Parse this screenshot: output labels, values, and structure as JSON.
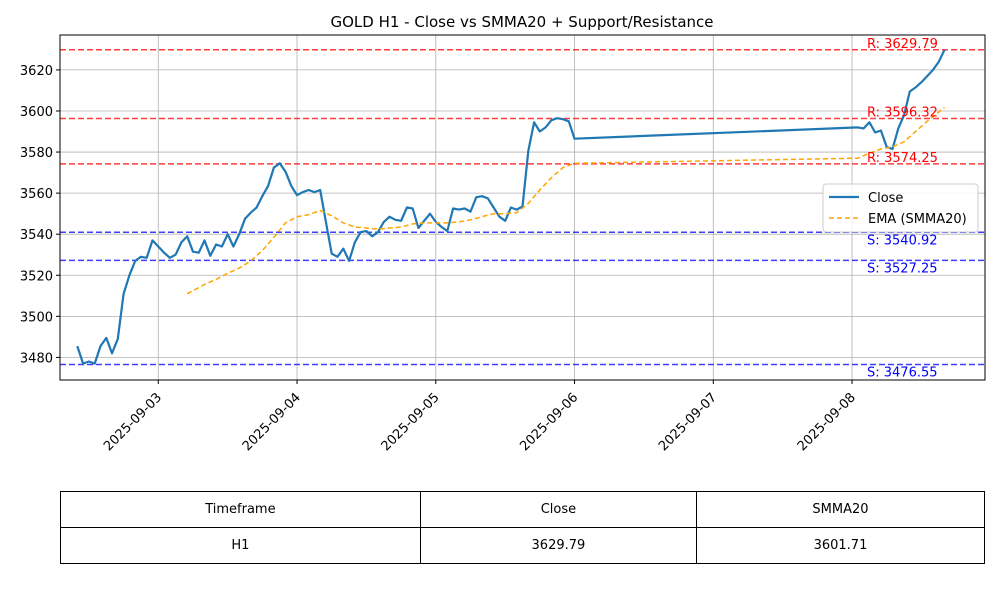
{
  "chart_data": {
    "type": "line",
    "title": "GOLD H1 - Close vs SMMA20 + Support/Resistance",
    "xlabel": "",
    "ylabel": "",
    "x_range": [
      "2025-09-02 07:00",
      "2025-09-08 23:00"
    ],
    "ylim": [
      3469,
      3637
    ],
    "y_ticks": [
      3480,
      3500,
      3520,
      3540,
      3560,
      3580,
      3600,
      3620
    ],
    "x_ticks": [
      "2025-09-03",
      "2025-09-04",
      "2025-09-05",
      "2025-09-06",
      "2025-09-07",
      "2025-09-08"
    ],
    "grid": true,
    "legend_placement": "center-right",
    "series": [
      {
        "name": "Close",
        "color": "#1f77b4",
        "style": "solid",
        "points": [
          [
            "2025-09-02 10:00",
            3485.5
          ],
          [
            "2025-09-02 11:00",
            3477.0
          ],
          [
            "2025-09-02 12:00",
            3478.0
          ],
          [
            "2025-09-02 13:00",
            3477.0
          ],
          [
            "2025-09-02 14:00",
            3485.5
          ],
          [
            "2025-09-02 15:00",
            3489.5
          ],
          [
            "2025-09-02 16:00",
            3482.0
          ],
          [
            "2025-09-02 17:00",
            3489.0
          ],
          [
            "2025-09-02 18:00",
            3511.0
          ],
          [
            "2025-09-02 19:00",
            3520.0
          ],
          [
            "2025-09-02 20:00",
            3527.0
          ],
          [
            "2025-09-02 21:00",
            3529.0
          ],
          [
            "2025-09-02 22:00",
            3528.5
          ],
          [
            "2025-09-02 23:00",
            3537.0
          ],
          [
            "2025-09-03 00:00",
            3534.0
          ],
          [
            "2025-09-03 01:00",
            3531.0
          ],
          [
            "2025-09-03 02:00",
            3528.5
          ],
          [
            "2025-09-03 03:00",
            3530.0
          ],
          [
            "2025-09-03 04:00",
            3536.0
          ],
          [
            "2025-09-03 05:00",
            3539.0
          ],
          [
            "2025-09-03 06:00",
            3531.5
          ],
          [
            "2025-09-03 07:00",
            3531.0
          ],
          [
            "2025-09-03 08:00",
            3537.0
          ],
          [
            "2025-09-03 09:00",
            3529.5
          ],
          [
            "2025-09-03 10:00",
            3535.0
          ],
          [
            "2025-09-03 11:00",
            3534.0
          ],
          [
            "2025-09-03 12:00",
            3540.0
          ],
          [
            "2025-09-03 13:00",
            3534.0
          ],
          [
            "2025-09-03 14:00",
            3540.0
          ],
          [
            "2025-09-03 15:00",
            3547.5
          ],
          [
            "2025-09-03 16:00",
            3550.5
          ],
          [
            "2025-09-03 17:00",
            3553.0
          ],
          [
            "2025-09-03 18:00",
            3558.5
          ],
          [
            "2025-09-03 19:00",
            3563.5
          ],
          [
            "2025-09-03 20:00",
            3572.5
          ],
          [
            "2025-09-03 21:00",
            3574.5
          ],
          [
            "2025-09-03 22:00",
            3570.5
          ],
          [
            "2025-09-03 23:00",
            3563.5
          ],
          [
            "2025-09-04 00:00",
            3559.0
          ],
          [
            "2025-09-04 01:00",
            3560.5
          ],
          [
            "2025-09-04 02:00",
            3561.5
          ],
          [
            "2025-09-04 03:00",
            3560.5
          ],
          [
            "2025-09-04 04:00",
            3561.5
          ],
          [
            "2025-09-04 05:00",
            3546.0
          ],
          [
            "2025-09-04 06:00",
            3530.5
          ],
          [
            "2025-09-04 07:00",
            3529.0
          ],
          [
            "2025-09-04 08:00",
            3533.0
          ],
          [
            "2025-09-04 09:00",
            3527.0
          ],
          [
            "2025-09-04 10:00",
            3536.0
          ],
          [
            "2025-09-04 11:00",
            3541.0
          ],
          [
            "2025-09-04 12:00",
            3541.5
          ],
          [
            "2025-09-04 13:00",
            3539.0
          ],
          [
            "2025-09-04 14:00",
            3541.0
          ],
          [
            "2025-09-04 15:00",
            3546.0
          ],
          [
            "2025-09-04 16:00",
            3548.5
          ],
          [
            "2025-09-04 17:00",
            3547.0
          ],
          [
            "2025-09-04 18:00",
            3546.5
          ],
          [
            "2025-09-04 19:00",
            3553.0
          ],
          [
            "2025-09-04 20:00",
            3552.5
          ],
          [
            "2025-09-04 21:00",
            3543.0
          ],
          [
            "2025-09-04 22:00",
            3546.5
          ],
          [
            "2025-09-04 23:00",
            3550.0
          ],
          [
            "2025-09-05 00:00",
            3546.0
          ],
          [
            "2025-09-05 01:00",
            3543.5
          ],
          [
            "2025-09-05 02:00",
            3541.5
          ],
          [
            "2025-09-05 03:00",
            3552.5
          ],
          [
            "2025-09-05 04:00",
            3552.0
          ],
          [
            "2025-09-05 05:00",
            3552.5
          ],
          [
            "2025-09-05 06:00",
            3551.0
          ],
          [
            "2025-09-05 07:00",
            3558.0
          ],
          [
            "2025-09-05 08:00",
            3558.5
          ],
          [
            "2025-09-05 09:00",
            3557.5
          ],
          [
            "2025-09-05 10:00",
            3553.0
          ],
          [
            "2025-09-05 11:00",
            3548.5
          ],
          [
            "2025-09-05 12:00",
            3546.5
          ],
          [
            "2025-09-05 13:00",
            3553.0
          ],
          [
            "2025-09-05 14:00",
            3552.0
          ],
          [
            "2025-09-05 15:00",
            3553.5
          ],
          [
            "2025-09-05 16:00",
            3580.5
          ],
          [
            "2025-09-05 17:00",
            3594.5
          ],
          [
            "2025-09-05 18:00",
            3590.0
          ],
          [
            "2025-09-05 19:00",
            3592.0
          ],
          [
            "2025-09-05 20:00",
            3595.5
          ],
          [
            "2025-09-05 21:00",
            3596.5
          ],
          [
            "2025-09-05 22:00",
            3596.0
          ],
          [
            "2025-09-05 23:00",
            3595.0
          ],
          [
            "2025-09-06 00:00",
            3586.5
          ],
          [
            "2025-09-08 01:00",
            3592.0
          ],
          [
            "2025-09-08 02:00",
            3591.5
          ],
          [
            "2025-09-08 03:00",
            3594.5
          ],
          [
            "2025-09-08 04:00",
            3589.5
          ],
          [
            "2025-09-08 05:00",
            3590.5
          ],
          [
            "2025-09-08 06:00",
            3582.5
          ],
          [
            "2025-09-08 07:00",
            3581.5
          ],
          [
            "2025-09-08 08:00",
            3591.5
          ],
          [
            "2025-09-08 09:00",
            3598.0
          ],
          [
            "2025-09-08 10:00",
            3609.5
          ],
          [
            "2025-09-08 11:00",
            3611.5
          ],
          [
            "2025-09-08 12:00",
            3614.0
          ],
          [
            "2025-09-08 13:00",
            3617.0
          ],
          [
            "2025-09-08 14:00",
            3620.0
          ],
          [
            "2025-09-08 15:00",
            3624.0
          ],
          [
            "2025-09-08 16:00",
            3629.79
          ]
        ]
      },
      {
        "name": "EMA (SMMA20)",
        "color": "#ffa500",
        "style": "dashed",
        "points": [
          [
            "2025-09-03 05:00",
            3511.0
          ],
          [
            "2025-09-03 06:00",
            3512.5
          ],
          [
            "2025-09-03 07:00",
            3514.0
          ],
          [
            "2025-09-03 08:00",
            3515.5
          ],
          [
            "2025-09-03 10:00",
            3518.0
          ],
          [
            "2025-09-03 12:00",
            3521.0
          ],
          [
            "2025-09-03 14:00",
            3523.5
          ],
          [
            "2025-09-03 16:00",
            3527.0
          ],
          [
            "2025-09-03 18:00",
            3532.0
          ],
          [
            "2025-09-03 20:00",
            3538.5
          ],
          [
            "2025-09-03 22:00",
            3545.5
          ],
          [
            "2025-09-04 00:00",
            3548.5
          ],
          [
            "2025-09-04 02:00",
            3549.5
          ],
          [
            "2025-09-04 04:00",
            3551.5
          ],
          [
            "2025-09-04 06:00",
            3549.0
          ],
          [
            "2025-09-04 08:00",
            3545.5
          ],
          [
            "2025-09-04 10:00",
            3543.5
          ],
          [
            "2025-09-04 12:00",
            3543.0
          ],
          [
            "2025-09-04 14:00",
            3542.5
          ],
          [
            "2025-09-04 16:00",
            3543.0
          ],
          [
            "2025-09-04 18:00",
            3543.5
          ],
          [
            "2025-09-04 20:00",
            3545.0
          ],
          [
            "2025-09-04 22:00",
            3545.5
          ],
          [
            "2025-09-05 00:00",
            3545.5
          ],
          [
            "2025-09-05 02:00",
            3545.5
          ],
          [
            "2025-09-05 04:00",
            3546.0
          ],
          [
            "2025-09-05 06:00",
            3547.0
          ],
          [
            "2025-09-05 08:00",
            3548.5
          ],
          [
            "2025-09-05 10:00",
            3550.0
          ],
          [
            "2025-09-05 12:00",
            3550.0
          ],
          [
            "2025-09-05 14:00",
            3550.5
          ],
          [
            "2025-09-05 16:00",
            3555.0
          ],
          [
            "2025-09-05 18:00",
            3561.5
          ],
          [
            "2025-09-05 20:00",
            3567.5
          ],
          [
            "2025-09-05 22:00",
            3572.5
          ],
          [
            "2025-09-06 00:00",
            3574.5
          ],
          [
            "2025-09-08 01:00",
            3577.0
          ],
          [
            "2025-09-08 03:00",
            3579.5
          ],
          [
            "2025-09-08 05:00",
            3581.5
          ],
          [
            "2025-09-08 07:00",
            3582.5
          ],
          [
            "2025-09-08 09:00",
            3585.0
          ],
          [
            "2025-09-08 11:00",
            3590.0
          ],
          [
            "2025-09-08 13:00",
            3595.0
          ],
          [
            "2025-09-08 15:00",
            3599.5
          ],
          [
            "2025-09-08 16:00",
            3601.71
          ]
        ]
      }
    ],
    "levels": [
      {
        "kind": "resistance",
        "value": 3629.79,
        "label": "R: 3629.79",
        "color": "#ff0000"
      },
      {
        "kind": "resistance",
        "value": 3596.32,
        "label": "R: 3596.32",
        "color": "#ff0000"
      },
      {
        "kind": "resistance",
        "value": 3574.25,
        "label": "R: 3574.25",
        "color": "#ff0000"
      },
      {
        "kind": "support",
        "value": 3540.92,
        "label": "S: 3540.92",
        "color": "#0000ff"
      },
      {
        "kind": "support",
        "value": 3527.25,
        "label": "S: 3527.25",
        "color": "#0000ff"
      },
      {
        "kind": "support",
        "value": 3476.55,
        "label": "S: 3476.55",
        "color": "#0000ff"
      }
    ]
  },
  "table": {
    "headers": [
      "Timeframe",
      "Close",
      "SMMA20"
    ],
    "row": [
      "H1",
      "3629.79",
      "3601.71"
    ]
  }
}
